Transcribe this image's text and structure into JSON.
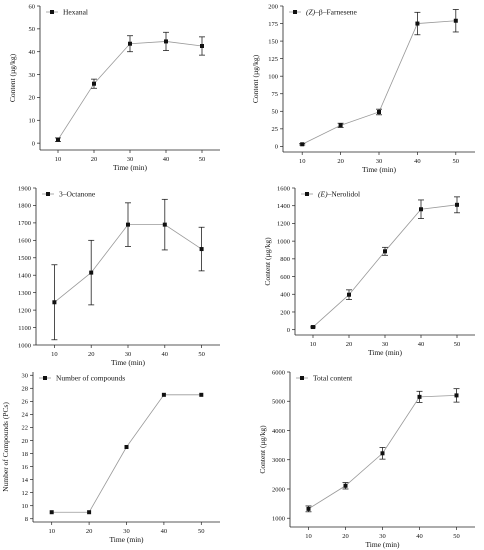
{
  "chart_data": [
    {
      "id": "hexanal",
      "type": "line",
      "ylabel": "Content (µg/kg)",
      "xlabel": "Time (min)",
      "legend": {
        "parts": [
          {
            "text": "Hexanal",
            "italic": false
          }
        ],
        "position": "top-left"
      },
      "x": [
        10,
        20,
        30,
        40,
        50
      ],
      "values": [
        1.5,
        26,
        43.5,
        44.5,
        42.5
      ],
      "errors": [
        0.8,
        2,
        3.5,
        4,
        4
      ],
      "xlim": [
        5,
        55
      ],
      "ylim": [
        -3,
        60
      ],
      "xticks": [
        "10",
        "20",
        "30",
        "40",
        "50"
      ],
      "yticks": [
        "0",
        "10",
        "20",
        "30",
        "40",
        "50",
        "60"
      ],
      "ytick_values": [
        0,
        10,
        20,
        30,
        40,
        50,
        60
      ]
    },
    {
      "id": "farnesene",
      "type": "line",
      "ylabel": "Content (µg/kg)",
      "xlabel": "Time (min)",
      "legend": {
        "parts": [
          {
            "text": "(Z)",
            "italic": true
          },
          {
            "text": "–β–Farnesene",
            "italic": false
          }
        ],
        "position": "top-left"
      },
      "x": [
        10,
        20,
        30,
        40,
        50
      ],
      "values": [
        3,
        30,
        49,
        175,
        179
      ],
      "errors": [
        1,
        3,
        4,
        16,
        16
      ],
      "xlim": [
        5,
        55
      ],
      "ylim": [
        -8,
        200
      ],
      "xticks": [
        "10",
        "20",
        "30",
        "40",
        "50"
      ],
      "yticks": [
        "0",
        "25",
        "50",
        "75",
        "100",
        "125",
        "150",
        "175",
        "200"
      ],
      "ytick_values": [
        0,
        25,
        50,
        75,
        100,
        125,
        150,
        175,
        200
      ]
    },
    {
      "id": "octanone",
      "type": "line",
      "ylabel": "",
      "xlabel": "Time (min)",
      "legend": {
        "parts": [
          {
            "text": "3–Octanone",
            "italic": false
          }
        ],
        "position": "top-left"
      },
      "x": [
        10,
        20,
        30,
        40,
        50
      ],
      "values": [
        1245,
        1415,
        1690,
        1690,
        1550
      ],
      "errors": [
        215,
        185,
        125,
        145,
        125
      ],
      "xlim": [
        5,
        55
      ],
      "ylim": [
        1000,
        1900
      ],
      "xticks": [
        "10",
        "20",
        "30",
        "40",
        "50"
      ],
      "yticks": [
        "1000",
        "1100",
        "1200",
        "1300",
        "1400",
        "1500",
        "1600",
        "1700",
        "1800",
        "1900"
      ],
      "ytick_values": [
        1000,
        1100,
        1200,
        1300,
        1400,
        1500,
        1600,
        1700,
        1800,
        1900
      ]
    },
    {
      "id": "nerolidol",
      "type": "line",
      "ylabel": "Content (µg/kg)",
      "xlabel": "Time (min)",
      "legend": {
        "parts": [
          {
            "text": "(E)",
            "italic": true
          },
          {
            "text": "–Nerolidol",
            "italic": false
          }
        ],
        "position": "top-left"
      },
      "x": [
        10,
        20,
        30,
        40,
        50
      ],
      "values": [
        30,
        395,
        885,
        1360,
        1410
      ],
      "errors": [
        10,
        55,
        45,
        105,
        90
      ],
      "xlim": [
        5,
        55
      ],
      "ylim": [
        -60,
        1600
      ],
      "xticks": [
        "10",
        "20",
        "30",
        "40",
        "50"
      ],
      "yticks": [
        "0",
        "200",
        "400",
        "600",
        "800",
        "1000",
        "1200",
        "1400",
        "1600"
      ],
      "ytick_values": [
        0,
        200,
        400,
        600,
        800,
        1000,
        1200,
        1400,
        1600
      ]
    },
    {
      "id": "compounds",
      "type": "line",
      "ylabel": "Number of Compounds (PCs)",
      "xlabel": "Time (min)",
      "legend": {
        "parts": [
          {
            "text": "Number of compounds",
            "italic": false
          }
        ],
        "position": "top-left"
      },
      "x": [
        10,
        20,
        30,
        40,
        50
      ],
      "values": [
        9,
        9,
        19,
        27,
        27
      ],
      "errors": [
        0,
        0,
        0,
        0,
        0
      ],
      "xlim": [
        5,
        55
      ],
      "ylim": [
        7.5,
        30.5
      ],
      "xticks": [
        "10",
        "20",
        "30",
        "40",
        "50"
      ],
      "yticks": [
        "8",
        "10",
        "12",
        "14",
        "16",
        "18",
        "20",
        "22",
        "24",
        "26",
        "28",
        "30"
      ],
      "ytick_values": [
        8,
        10,
        12,
        14,
        16,
        18,
        20,
        22,
        24,
        26,
        28,
        30
      ]
    },
    {
      "id": "total",
      "type": "line",
      "ylabel": "Content (µg/kg)",
      "xlabel": "Time (min)",
      "legend": {
        "parts": [
          {
            "text": "Total content",
            "italic": false
          }
        ],
        "position": "top-left"
      },
      "x": [
        10,
        20,
        30,
        40,
        50
      ],
      "values": [
        1320,
        2110,
        3220,
        5150,
        5200
      ],
      "errors": [
        100,
        110,
        200,
        190,
        230
      ],
      "xlim": [
        5,
        55
      ],
      "ylim": [
        700,
        6000
      ],
      "xticks": [
        "10",
        "20",
        "30",
        "40",
        "50"
      ],
      "yticks": [
        "1000",
        "2000",
        "3000",
        "4000",
        "5000",
        "6000"
      ],
      "ytick_values": [
        1000,
        2000,
        3000,
        4000,
        5000,
        6000
      ]
    }
  ]
}
